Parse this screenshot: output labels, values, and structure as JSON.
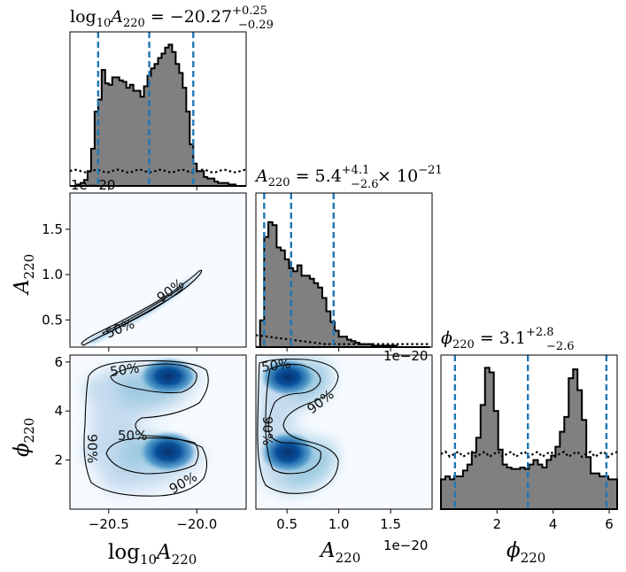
{
  "chart_data": {
    "type": "corner",
    "parameters": [
      {
        "key": "logA",
        "range": [
          -20.72,
          -19.72
        ],
        "ticks": [
          -20.5,
          -20.0
        ],
        "tick_labels": [
          "−20.5",
          "−20.0"
        ]
      },
      {
        "key": "A",
        "range": [
          2e-21,
          1.9e-20
        ],
        "ticks": [
          5e-21,
          1e-20,
          1.5e-20
        ],
        "tick_labels": [
          "0.5",
          "1.0",
          "1.5"
        ],
        "y_tick_labels": [
          "0.5",
          "1.0",
          "1.5"
        ],
        "offset_label": "1e−20"
      },
      {
        "key": "phi",
        "range": [
          0,
          6.2832
        ],
        "ticks": [
          2,
          4,
          6
        ],
        "tick_labels": [
          "2",
          "4",
          "6"
        ]
      }
    ],
    "titles": {
      "logA": {
        "base": "log",
        "sub1": "10",
        "sym": "A",
        "sub2": "220",
        "value": " = −20.27",
        "plus": "+0.25",
        "minus": "−0.29"
      },
      "A": {
        "sym": "A",
        "sub": "220",
        "value": " = 5.4",
        "plus": "+4.1",
        "minus": "−2.6",
        "tail": " × 10",
        "exp": "−21"
      },
      "phi": {
        "sym": "ϕ",
        "sub": "220",
        "value": " = 3.1",
        "plus": "+2.8",
        "minus": "−2.6"
      }
    },
    "axis_labels": {
      "x_logA": {
        "base": "log",
        "sub1": "10",
        "sym": "A",
        "sub2": "220"
      },
      "x_A": {
        "sym": "A",
        "sub": "220"
      },
      "x_phi": {
        "sym": "ϕ",
        "sub": "220"
      },
      "y_A": {
        "sym": "A",
        "sub": "220"
      },
      "y_phi": {
        "sym": "ϕ",
        "sub": "220"
      }
    },
    "quantiles": {
      "logA": [
        -20.56,
        -20.27,
        -20.02
      ],
      "A": [
        2.8e-21,
        5.4e-21,
        9.5e-21
      ],
      "phi": [
        0.5,
        3.1,
        5.9
      ]
    },
    "hist_logA": {
      "bins": [
        -20.72,
        -20.7,
        -20.68,
        -20.66,
        -20.64,
        -20.62,
        -20.6,
        -20.58,
        -20.56,
        -20.54,
        -20.52,
        -20.5,
        -20.48,
        -20.46,
        -20.44,
        -20.42,
        -20.4,
        -20.38,
        -20.36,
        -20.34,
        -20.32,
        -20.3,
        -20.28,
        -20.26,
        -20.24,
        -20.22,
        -20.2,
        -20.18,
        -20.16,
        -20.14,
        -20.12,
        -20.1,
        -20.08,
        -20.06,
        -20.04,
        -20.02,
        -20.0,
        -19.98,
        -19.96,
        -19.94,
        -19.92,
        -19.9,
        -19.88,
        -19.86,
        -19.84,
        -19.82,
        -19.8,
        -19.78,
        -19.76,
        -19.74,
        -19.72
      ],
      "counts": [
        0.0,
        0.0,
        0.01,
        0.02,
        0.04,
        0.1,
        0.25,
        0.5,
        0.58,
        0.78,
        0.69,
        0.68,
        0.73,
        0.73,
        0.71,
        0.7,
        0.66,
        0.68,
        0.64,
        0.64,
        0.6,
        0.67,
        0.74,
        0.79,
        0.82,
        0.86,
        0.89,
        0.93,
        0.95,
        0.9,
        0.82,
        0.76,
        0.66,
        0.5,
        0.28,
        0.15,
        0.1,
        0.1,
        0.06,
        0.05,
        0.05,
        0.03,
        0.02,
        0.02,
        0.02,
        0.01,
        0.01,
        0.0,
        0.0,
        0.0
      ],
      "prior": 0.1
    },
    "hist_A": {
      "edges": [
        0.2,
        0.24,
        0.28,
        0.32,
        0.36,
        0.4,
        0.44,
        0.48,
        0.52,
        0.56,
        0.6,
        0.64,
        0.68,
        0.72,
        0.76,
        0.8,
        0.84,
        0.88,
        0.92,
        0.96,
        1.0,
        1.04,
        1.08,
        1.12,
        1.16,
        1.2,
        1.24,
        1.28,
        1.32,
        1.36,
        1.4,
        1.44,
        1.48,
        1.52,
        1.56,
        1.6,
        1.64,
        1.68,
        1.72,
        1.76,
        1.8,
        1.84,
        1.88
      ],
      "counts": [
        0.0,
        0.18,
        0.74,
        0.84,
        0.82,
        0.67,
        0.65,
        0.59,
        0.53,
        0.51,
        0.55,
        0.48,
        0.48,
        0.46,
        0.43,
        0.4,
        0.33,
        0.24,
        0.17,
        0.11,
        0.07,
        0.07,
        0.05,
        0.04,
        0.03,
        0.02,
        0.02,
        0.02,
        0.01,
        0.01,
        0.01,
        0.01,
        0.01,
        0.01,
        0.0,
        0.0,
        0.0,
        0.0,
        0.0,
        0.0,
        0.0,
        0.0
      ],
      "prior_start": 0.08,
      "prior_end": 0.02
    },
    "hist_phi": {
      "edges_count": 40,
      "counts": [
        0.2,
        0.22,
        0.2,
        0.22,
        0.22,
        0.26,
        0.3,
        0.38,
        0.48,
        0.7,
        0.95,
        0.92,
        0.66,
        0.4,
        0.3,
        0.28,
        0.27,
        0.27,
        0.28,
        0.27,
        0.3,
        0.33,
        0.3,
        0.28,
        0.33,
        0.36,
        0.42,
        0.52,
        0.62,
        0.88,
        0.94,
        0.8,
        0.6,
        0.35,
        0.24,
        0.24,
        0.22,
        0.22,
        0.2,
        0.2
      ],
      "prior": 0.37
    },
    "contour_labels": [
      "50%",
      "90%"
    ],
    "colors": {
      "hist_fill": "#808080",
      "hist_edge": "#000000",
      "quantile": "#1f77b4",
      "density": "#08519c",
      "contour": "#000000"
    }
  }
}
